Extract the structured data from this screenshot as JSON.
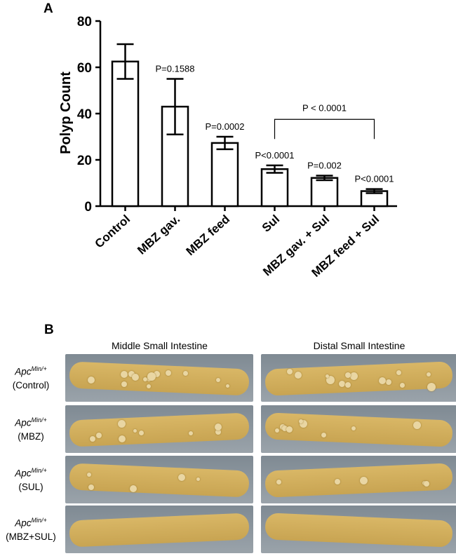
{
  "panel_a_letter": "A",
  "panel_b_letter": "B",
  "chart_data": {
    "type": "bar",
    "ylabel": "Polyp Count",
    "xlabel": "",
    "ylim": [
      0,
      80
    ],
    "yticks": [
      0,
      20,
      40,
      60,
      80
    ],
    "categories": [
      "Control",
      "MBZ gav.",
      "MBZ feed",
      "Sul",
      "MBZ gav. + Sul",
      "MBZ feed + Sul"
    ],
    "values": [
      62.5,
      43,
      27.3,
      16,
      12.2,
      6.5
    ],
    "errors": [
      7.5,
      12,
      2.7,
      1.6,
      1.0,
      0.9
    ],
    "annotations": [
      "",
      "P=0.1588",
      "P=0.0002",
      "P<0.0001",
      "P=0.002",
      "P<0.0001"
    ],
    "bracket": {
      "from": "Sul",
      "to": "MBZ feed + Sul",
      "label": "P < 0.0001"
    },
    "grid": false,
    "legend": "none"
  },
  "panel_b": {
    "columns": [
      "Middle Small Intestine",
      "Distal Small Intestine"
    ],
    "rows": [
      {
        "gene": "Apc",
        "superscript": "Min/+",
        "group": "(Control)"
      },
      {
        "gene": "Apc",
        "superscript": "Min/+",
        "group": "(MBZ)"
      },
      {
        "gene": "Apc",
        "superscript": "Min/+",
        "group": "(SUL)"
      },
      {
        "gene": "Apc",
        "superscript": "Min/+",
        "group": "(MBZ+SUL)"
      }
    ],
    "colors": {
      "background": "#7f8a93",
      "tissue": "#c8a452",
      "tissue_light": "#d9b766"
    }
  }
}
